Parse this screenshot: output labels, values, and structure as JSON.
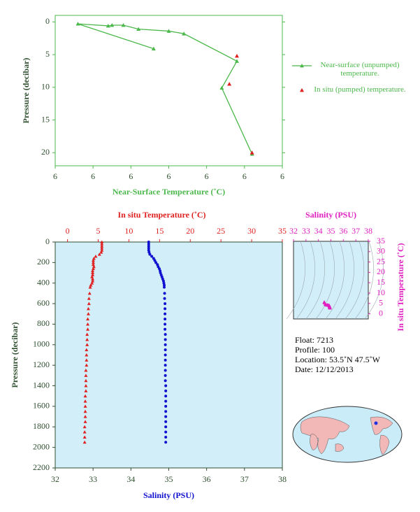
{
  "chart_data": [
    {
      "type": "line",
      "x_label": "Near-Surface Temperature (˚C)",
      "y_label": "Pressure (decibar)",
      "xlim": [
        5.7,
        6.3
      ],
      "xticks": [
        {
          "value": 5.7,
          "label": "6"
        },
        {
          "value": 5.8,
          "label": "6"
        },
        {
          "value": 5.9,
          "label": "6"
        },
        {
          "value": 6.0,
          "label": "6"
        },
        {
          "value": 6.1,
          "label": "6"
        },
        {
          "value": 6.2,
          "label": "6"
        },
        {
          "value": 6.3,
          "label": "6"
        }
      ],
      "ylim": [
        -1,
        22
      ],
      "yticks": [
        0,
        5,
        10,
        15,
        20
      ],
      "y_inverted": true,
      "legend": "right",
      "series": [
        {
          "name": "Near-surface (unpumped) temperature.",
          "color": "#4cb84c",
          "line": true,
          "x": [
            5.96,
            5.76,
            5.84,
            5.85,
            5.88,
            5.92,
            6.0,
            6.04,
            6.18,
            6.14,
            6.22
          ],
          "values": [
            4.1,
            0.3,
            0.6,
            0.5,
            0.5,
            1.1,
            1.4,
            1.8,
            6.0,
            10.1,
            20.2
          ]
        },
        {
          "name": "In situ (pumped) temperature.",
          "color": "#e02020",
          "line": false,
          "x": [
            6.18,
            6.16,
            6.22
          ],
          "values": [
            5.2,
            9.5,
            20.0
          ]
        }
      ]
    },
    {
      "type": "profile",
      "x_label": "Salinity (PSU)",
      "x2_label": "In situ Temperature (˚C)",
      "y_label": "Pressure (decibar)",
      "xlim": [
        32,
        38
      ],
      "xticks": [
        32,
        33,
        34,
        35,
        36,
        37,
        38
      ],
      "x2lim": [
        -2,
        35
      ],
      "x2ticks": [
        0,
        5,
        10,
        15,
        20,
        25,
        30,
        35
      ],
      "ylim": [
        0,
        2200
      ],
      "yticks": [
        0,
        200,
        400,
        600,
        800,
        1000,
        1200,
        1400,
        1600,
        1800,
        2000,
        2200
      ],
      "y_inverted": true,
      "y": [
        0,
        20,
        40,
        60,
        80,
        100,
        120,
        140,
        160,
        180,
        200,
        220,
        240,
        260,
        280,
        300,
        320,
        340,
        360,
        380,
        400,
        420,
        440,
        500,
        550,
        600,
        650,
        700,
        750,
        800,
        850,
        900,
        950,
        1000,
        1050,
        1100,
        1150,
        1200,
        1250,
        1300,
        1350,
        1400,
        1450,
        1500,
        1550,
        1600,
        1650,
        1700,
        1750,
        1800,
        1850,
        1900,
        1950
      ],
      "series": [
        {
          "color": "#e02020",
          "axis": "x2",
          "values": [
            5.6,
            5.6,
            5.6,
            5.6,
            5.6,
            5.5,
            5.2,
            4.6,
            4.3,
            4.2,
            4.2,
            4.2,
            4.3,
            4.2,
            4.1,
            4.1,
            4.1,
            4.0,
            4.1,
            4.1,
            4.0,
            3.8,
            3.7,
            3.6,
            3.5,
            3.5,
            3.4,
            3.4,
            3.3,
            3.3,
            3.3,
            3.2,
            3.2,
            3.2,
            3.1,
            3.1,
            3.1,
            3.1,
            3.0,
            3.0,
            3.0,
            3.0,
            3.0,
            2.9,
            2.9,
            2.9,
            2.9,
            2.9,
            2.9,
            2.8,
            2.8,
            2.8,
            2.8
          ]
        },
        {
          "color": "#1010d0",
          "axis": "x",
          "values": [
            34.47,
            34.47,
            34.47,
            34.47,
            34.47,
            34.48,
            34.5,
            34.55,
            34.6,
            34.63,
            34.66,
            34.7,
            34.72,
            34.75,
            34.77,
            34.78,
            34.8,
            34.82,
            34.84,
            34.86,
            34.87,
            34.88,
            34.88,
            34.89,
            34.89,
            34.9,
            34.9,
            34.9,
            34.9,
            34.9,
            34.9,
            34.91,
            34.91,
            34.91,
            34.91,
            34.91,
            34.91,
            34.91,
            34.91,
            34.91,
            34.91,
            34.92,
            34.92,
            34.92,
            34.92,
            34.92,
            34.92,
            34.92,
            34.92,
            34.92,
            34.92,
            34.92,
            34.92
          ]
        }
      ]
    },
    {
      "type": "scatter",
      "color": "#e020c0",
      "x_label": "Salinity (PSU)",
      "y_label": "In situ Temperature (˚C)",
      "xlim": [
        32,
        38
      ],
      "xticks": [
        32,
        33,
        34,
        35,
        36,
        37,
        38
      ],
      "ylim": [
        -2.5,
        35
      ],
      "yticks": [
        0,
        5,
        10,
        15,
        20,
        25,
        30,
        35
      ]
    }
  ],
  "info": [
    "Float:  7213",
    "Profile:  100",
    "Location:  53.5˚N  47.5˚W",
    "Date:  12/12/2013"
  ]
}
